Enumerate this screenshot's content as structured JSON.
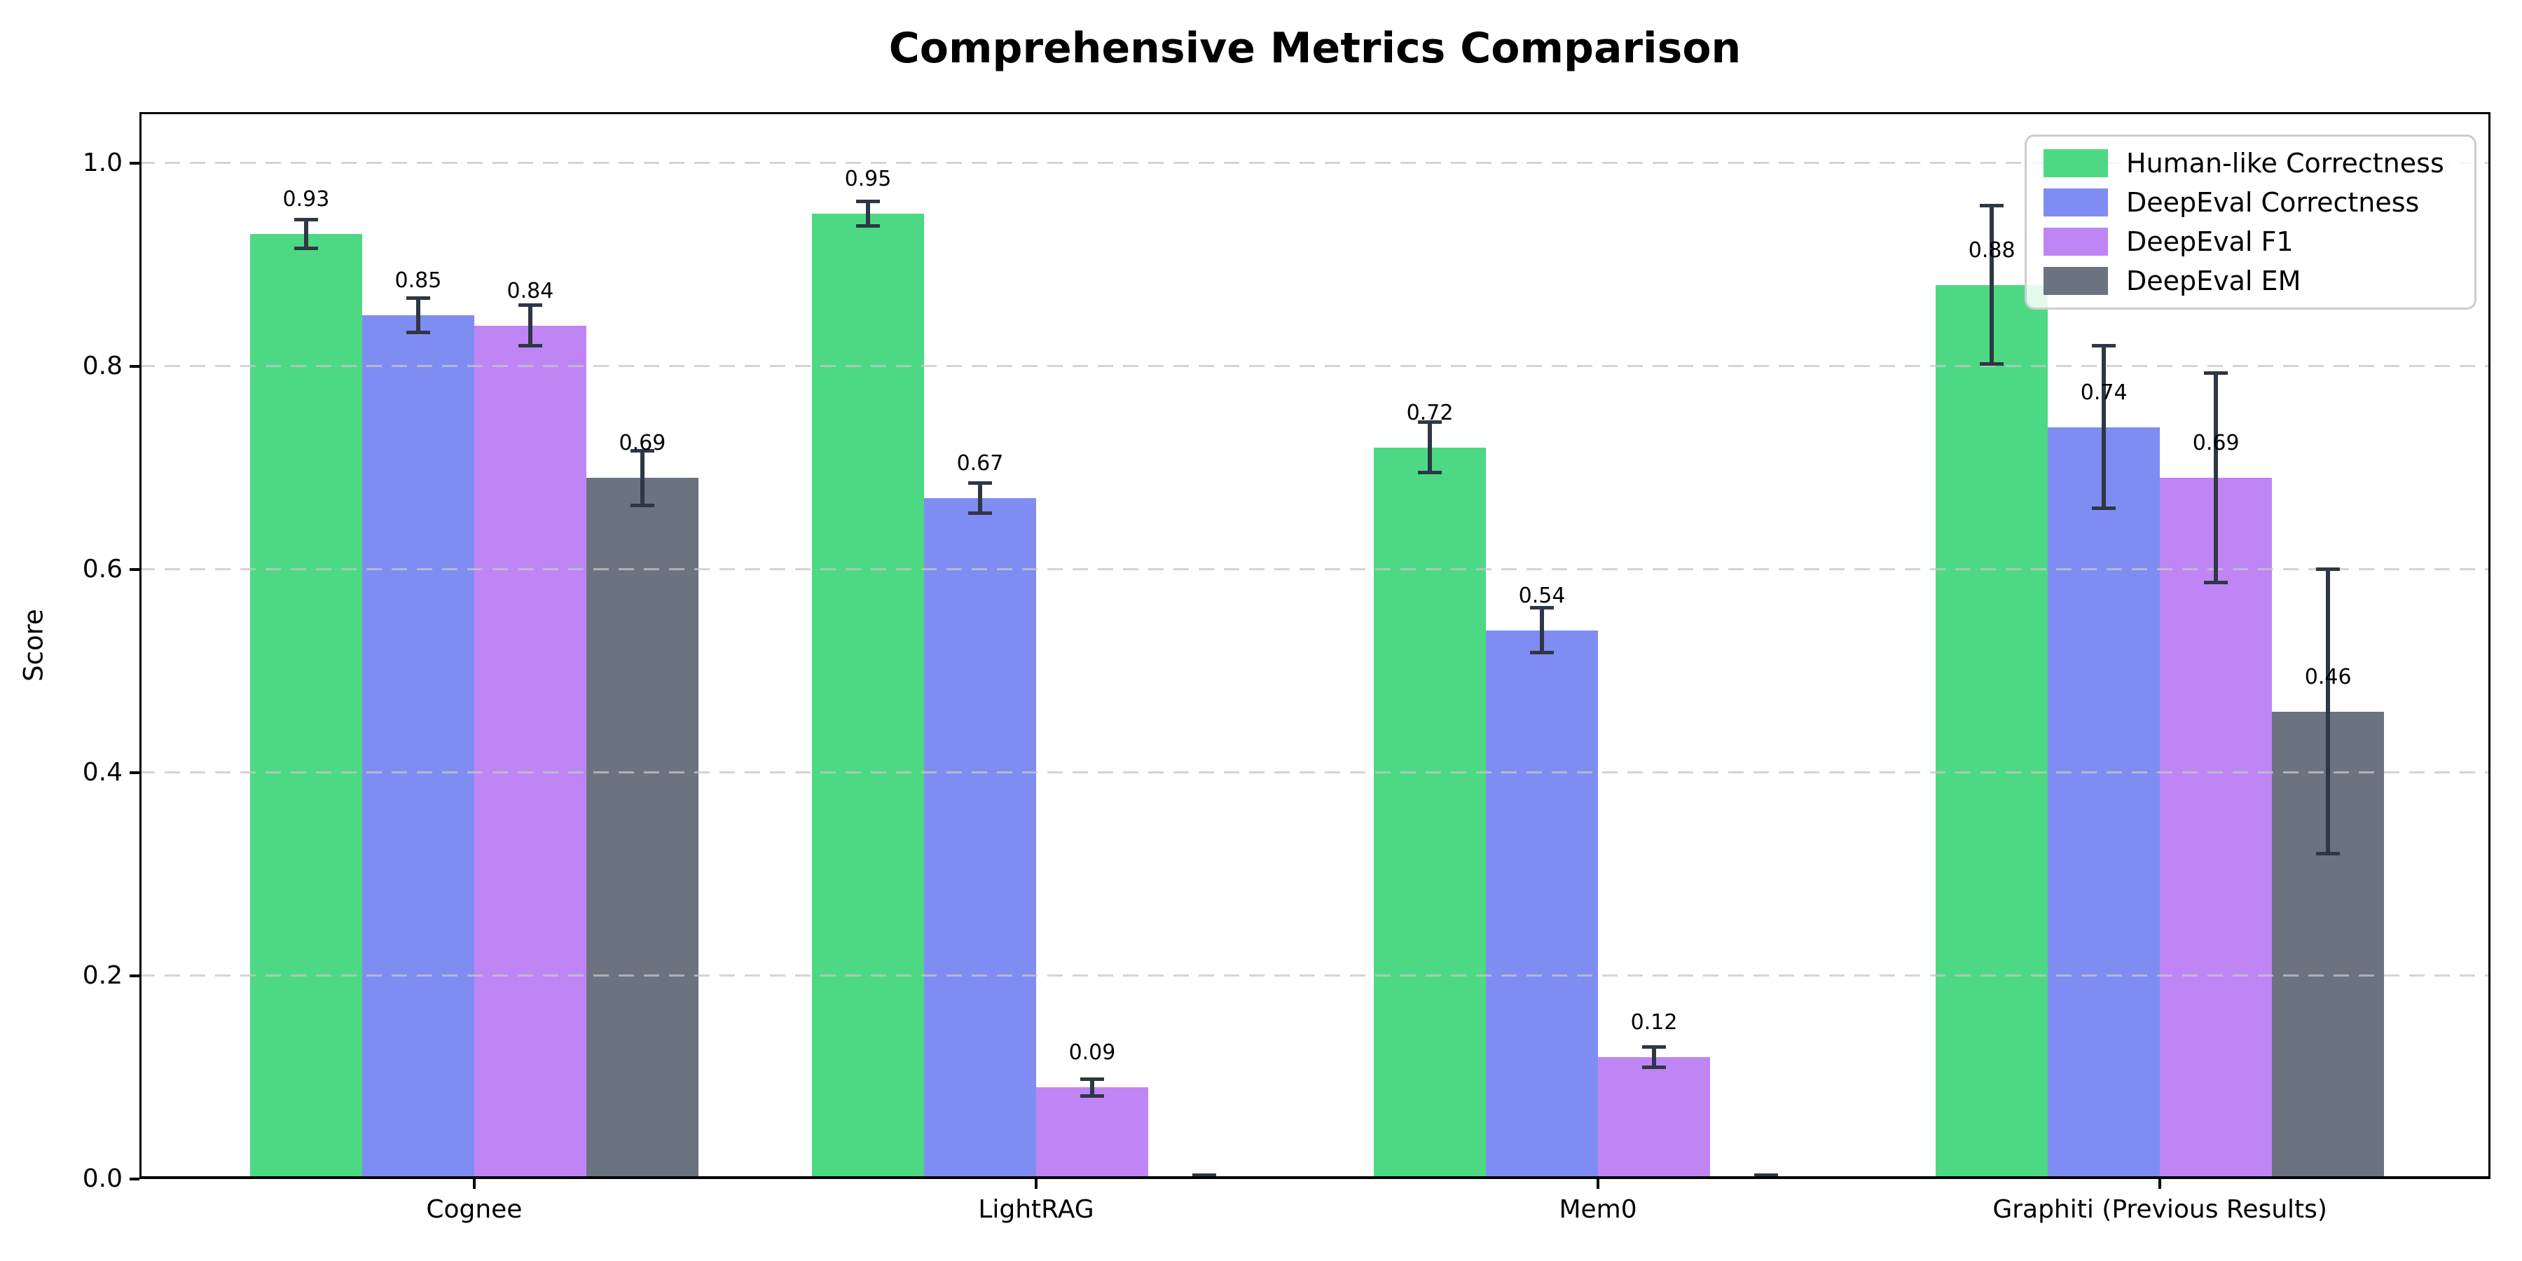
{
  "chart_data": {
    "type": "bar",
    "title": "Comprehensive Metrics Comparison",
    "ylabel": "Score",
    "xlabel": "",
    "categories": [
      "Cognee",
      "LightRAG",
      "Mem0",
      "Graphiti (Previous Results)"
    ],
    "series": [
      {
        "name": "Human-like Correctness",
        "color": "#4dd983",
        "values": [
          0.93,
          0.95,
          0.72,
          0.88
        ],
        "errors": [
          0.014,
          0.012,
          0.025,
          0.078
        ]
      },
      {
        "name": "DeepEval Correctness",
        "color": "#7f8df2",
        "values": [
          0.85,
          0.67,
          0.54,
          0.74
        ],
        "errors": [
          0.017,
          0.015,
          0.022,
          0.08
        ]
      },
      {
        "name": "DeepEval F1",
        "color": "#bf85f5",
        "values": [
          0.84,
          0.09,
          0.12,
          0.69
        ],
        "errors": [
          0.02,
          0.008,
          0.01,
          0.103
        ]
      },
      {
        "name": "DeepEval EM",
        "color": "#6b7280",
        "values": [
          0.69,
          0.0,
          0.0,
          0.46
        ],
        "errors": [
          0.027,
          0.004,
          0.004,
          0.14
        ]
      }
    ],
    "bar_value_labels": [
      "0.93",
      "0.85",
      "0.84",
      "0.69",
      "0.95",
      "0.67",
      "0.09",
      "0.72",
      "0.54",
      "0.12",
      "0.88",
      "0.74",
      "0.69",
      "0.46"
    ],
    "yticks": [
      "0.0",
      "0.2",
      "0.4",
      "0.6",
      "0.8",
      "1.0"
    ],
    "ytick_values": [
      0.0,
      0.2,
      0.4,
      0.6,
      0.8,
      1.0
    ],
    "ylim": [
      0,
      1.05
    ],
    "grid": "horizontal-dashed",
    "grid_color": "#d5d5d5",
    "errorbar_color": "#2e3745",
    "axis_color": "#000000",
    "legend_position": "upper right",
    "legend_border_color": "#cccccc",
    "background_color": "#ffffff"
  }
}
